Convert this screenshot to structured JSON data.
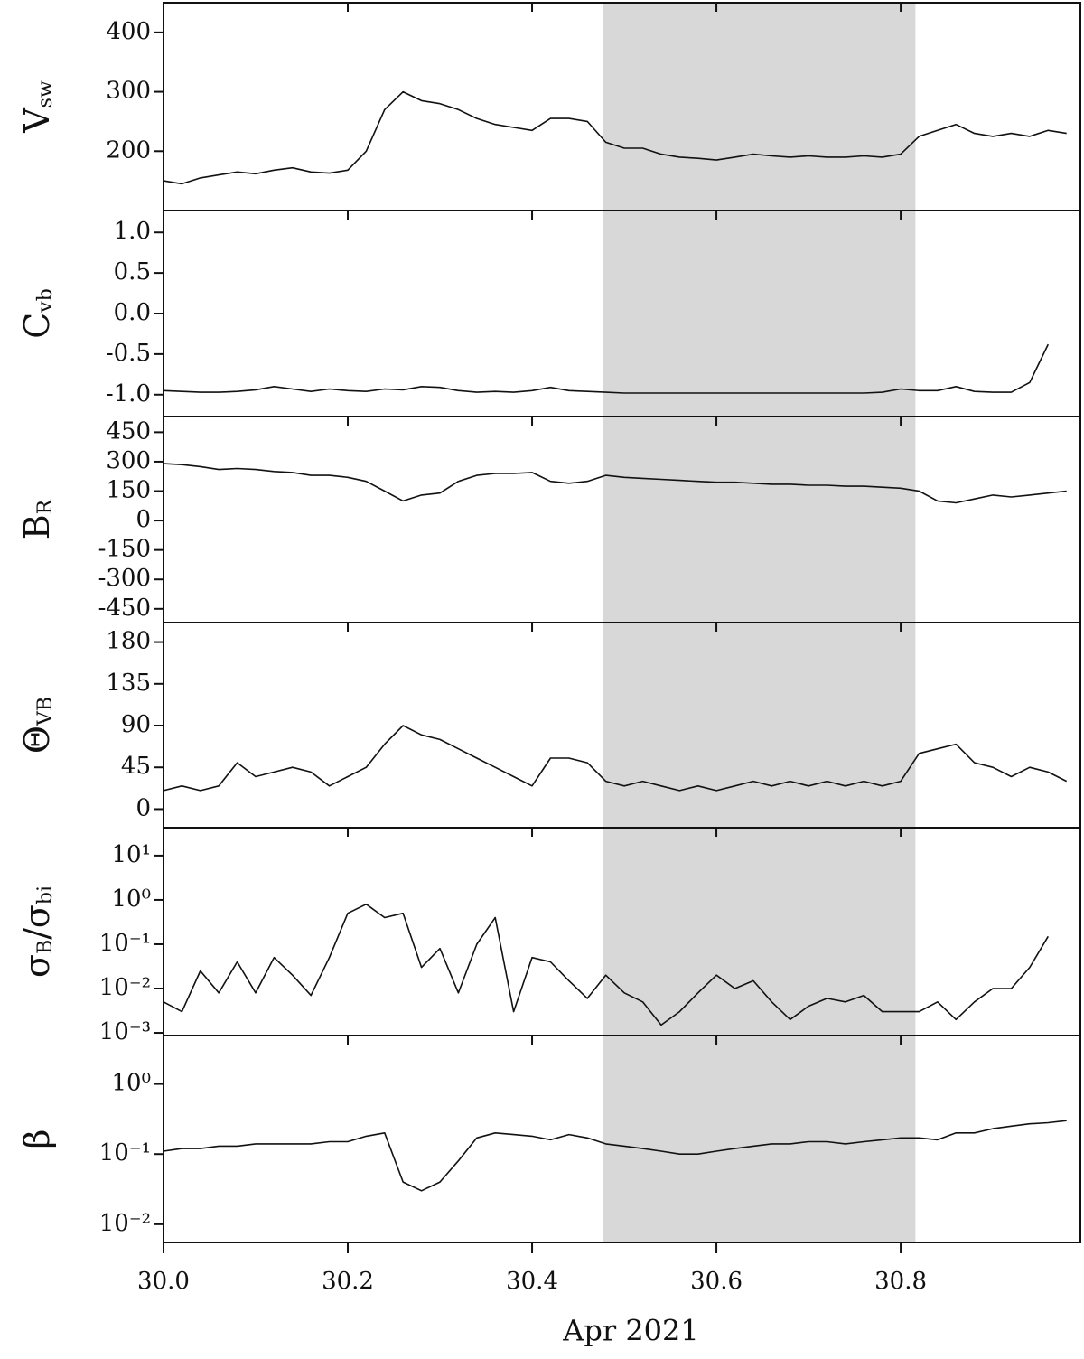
{
  "chart_data": [
    {
      "type": "line",
      "ylabel": [
        "V",
        "sw"
      ],
      "color": "#111111",
      "highlight": [
        30.477,
        30.816
      ],
      "highlight_color": "#d9d8d9",
      "xlim": [
        30,
        30.995
      ],
      "xticks": [
        30,
        30.2,
        30.4,
        30.6,
        30.8
      ],
      "x": [
        30.0,
        30.02,
        30.04,
        30.06,
        30.08,
        30.1,
        30.12,
        30.14,
        30.16,
        30.18,
        30.2,
        30.22,
        30.24,
        30.26,
        30.28,
        30.3,
        30.32,
        30.34,
        30.36,
        30.38,
        30.4,
        30.42,
        30.44,
        30.46,
        30.48,
        30.5,
        30.52,
        30.54,
        30.56,
        30.58,
        30.6,
        30.62,
        30.64,
        30.66,
        30.68,
        30.7,
        30.72,
        30.74,
        30.76,
        30.78,
        30.8,
        30.82,
        30.84,
        30.86,
        30.88,
        30.9,
        30.92,
        30.94,
        30.96,
        30.98
      ],
      "values": [
        150,
        145,
        155,
        160,
        165,
        162,
        168,
        172,
        165,
        163,
        168,
        200,
        270,
        300,
        285,
        280,
        270,
        255,
        245,
        240,
        235,
        255,
        255,
        250,
        215,
        205,
        205,
        195,
        190,
        188,
        185,
        190,
        195,
        192,
        190,
        192,
        190,
        190,
        192,
        190,
        195,
        225,
        235,
        245,
        230,
        225,
        230,
        225,
        235,
        230
      ],
      "ylim": [
        100,
        450
      ],
      "yticks": [
        200,
        300,
        400
      ]
    },
    {
      "type": "line",
      "ylabel": [
        "C",
        "vb"
      ],
      "color": "#111111",
      "highlight": [
        30.477,
        30.816
      ],
      "highlight_color": "#d9d8d9",
      "xlim": [
        30,
        30.995
      ],
      "xticks": [
        30,
        30.2,
        30.4,
        30.6,
        30.8
      ],
      "x": [
        30.0,
        30.02,
        30.04,
        30.06,
        30.08,
        30.1,
        30.12,
        30.14,
        30.16,
        30.18,
        30.2,
        30.22,
        30.24,
        30.26,
        30.28,
        30.3,
        30.32,
        30.34,
        30.36,
        30.38,
        30.4,
        30.42,
        30.44,
        30.46,
        30.48,
        30.5,
        30.52,
        30.54,
        30.56,
        30.58,
        30.6,
        30.62,
        30.64,
        30.66,
        30.68,
        30.7,
        30.72,
        30.74,
        30.76,
        30.78,
        30.8,
        30.82,
        30.84,
        30.86,
        30.88,
        30.9,
        30.92,
        30.94,
        30.96,
        30.98
      ],
      "values": [
        -0.95,
        -0.96,
        -0.97,
        -0.97,
        -0.96,
        -0.94,
        -0.9,
        -0.93,
        -0.96,
        -0.93,
        -0.95,
        -0.96,
        -0.93,
        -0.94,
        -0.9,
        -0.91,
        -0.95,
        -0.97,
        -0.96,
        -0.97,
        -0.95,
        -0.91,
        -0.95,
        -0.96,
        -0.97,
        -0.98,
        -0.98,
        -0.98,
        -0.98,
        -0.98,
        -0.98,
        -0.98,
        -0.98,
        -0.98,
        -0.98,
        -0.98,
        -0.98,
        -0.98,
        -0.98,
        -0.97,
        -0.93,
        -0.95,
        -0.95,
        -0.9,
        -0.96,
        -0.97,
        -0.97,
        -0.85,
        -0.38,
        null
      ],
      "ylim": [
        -1.27,
        1.27
      ],
      "yticks": [
        {
          "value": 1,
          "label": "1.0"
        },
        0.5,
        {
          "value": 0,
          "label": "0.0"
        },
        -0.5,
        {
          "value": -1,
          "label": "-1.0"
        }
      ]
    },
    {
      "type": "line",
      "ylabel": [
        "B",
        "R"
      ],
      "color": "#111111",
      "highlight": [
        30.477,
        30.816
      ],
      "highlight_color": "#d9d8d9",
      "xlim": [
        30,
        30.995
      ],
      "xticks": [
        30,
        30.2,
        30.4,
        30.6,
        30.8
      ],
      "x": [
        30.0,
        30.02,
        30.04,
        30.06,
        30.08,
        30.1,
        30.12,
        30.14,
        30.16,
        30.18,
        30.2,
        30.22,
        30.24,
        30.26,
        30.28,
        30.3,
        30.32,
        30.34,
        30.36,
        30.38,
        30.4,
        30.42,
        30.44,
        30.46,
        30.48,
        30.5,
        30.52,
        30.54,
        30.56,
        30.58,
        30.6,
        30.62,
        30.64,
        30.66,
        30.68,
        30.7,
        30.72,
        30.74,
        30.76,
        30.78,
        30.8,
        30.82,
        30.84,
        30.86,
        30.88,
        30.9,
        30.92,
        30.94,
        30.96,
        30.98
      ],
      "values": [
        290,
        285,
        275,
        260,
        265,
        260,
        250,
        245,
        230,
        230,
        220,
        200,
        150,
        100,
        130,
        140,
        200,
        230,
        240,
        240,
        245,
        200,
        190,
        200,
        230,
        220,
        215,
        210,
        205,
        200,
        195,
        195,
        190,
        185,
        185,
        180,
        180,
        175,
        175,
        170,
        165,
        150,
        100,
        90,
        110,
        130,
        120,
        130,
        140,
        150
      ],
      "ylim": [
        -520,
        530
      ],
      "yticks": [
        450,
        300,
        150,
        0,
        -150,
        -300,
        -450
      ]
    },
    {
      "type": "line",
      "ylabel": [
        "Θ",
        "VB"
      ],
      "color": "#111111",
      "highlight": [
        30.477,
        30.816
      ],
      "highlight_color": "#d9d8d9",
      "xlim": [
        30,
        30.995
      ],
      "xticks": [
        30,
        30.2,
        30.4,
        30.6,
        30.8
      ],
      "x": [
        30.0,
        30.02,
        30.04,
        30.06,
        30.08,
        30.1,
        30.12,
        30.14,
        30.16,
        30.18,
        30.2,
        30.22,
        30.24,
        30.26,
        30.28,
        30.3,
        30.32,
        30.34,
        30.36,
        30.38,
        30.4,
        30.42,
        30.44,
        30.46,
        30.48,
        30.5,
        30.52,
        30.54,
        30.56,
        30.58,
        30.6,
        30.62,
        30.64,
        30.66,
        30.68,
        30.7,
        30.72,
        30.74,
        30.76,
        30.78,
        30.8,
        30.82,
        30.84,
        30.86,
        30.88,
        30.9,
        30.92,
        30.94,
        30.96,
        30.98
      ],
      "values": [
        20,
        25,
        20,
        25,
        50,
        35,
        40,
        45,
        40,
        25,
        35,
        45,
        70,
        90,
        80,
        75,
        65,
        55,
        45,
        35,
        25,
        55,
        55,
        50,
        30,
        25,
        30,
        25,
        20,
        25,
        20,
        25,
        30,
        25,
        30,
        25,
        30,
        25,
        30,
        25,
        30,
        60,
        65,
        70,
        50,
        45,
        35,
        45,
        40,
        30
      ],
      "ylim": [
        -20,
        201
      ],
      "yticks": [
        180,
        135,
        90,
        45,
        0
      ]
    },
    {
      "type": "line",
      "ylabel": [
        "σ",
        "B",
        "/σ",
        "bi"
      ],
      "color": "#111111",
      "log": true,
      "highlight": [
        30.477,
        30.816
      ],
      "highlight_color": "#d9d8d9",
      "xlim": [
        30,
        30.995
      ],
      "xticks": [
        30,
        30.2,
        30.4,
        30.6,
        30.8
      ],
      "x": [
        30.0,
        30.02,
        30.04,
        30.06,
        30.08,
        30.1,
        30.12,
        30.14,
        30.16,
        30.18,
        30.2,
        30.22,
        30.24,
        30.26,
        30.28,
        30.3,
        30.32,
        30.34,
        30.36,
        30.38,
        30.4,
        30.42,
        30.44,
        30.46,
        30.48,
        30.5,
        30.52,
        30.54,
        30.56,
        30.58,
        30.6,
        30.62,
        30.64,
        30.66,
        30.68,
        30.7,
        30.72,
        30.74,
        30.76,
        30.78,
        30.8,
        30.82,
        30.84,
        30.86,
        30.88,
        30.9,
        30.92,
        30.94,
        30.96,
        30.98
      ],
      "values": [
        0.005,
        0.003,
        0.025,
        0.008,
        0.04,
        0.008,
        0.05,
        0.02,
        0.007,
        0.05,
        0.5,
        0.8,
        0.4,
        0.5,
        0.03,
        0.08,
        0.008,
        0.1,
        0.4,
        0.003,
        0.05,
        0.04,
        0.015,
        0.006,
        0.02,
        0.008,
        0.005,
        0.0015,
        0.003,
        0.008,
        0.02,
        0.01,
        0.015,
        0.005,
        0.002,
        0.004,
        0.006,
        0.005,
        0.007,
        0.003,
        0.003,
        0.003,
        0.005,
        0.002,
        0.005,
        0.01,
        0.01,
        0.03,
        0.15,
        null
      ],
      "ylim": [
        0.00087,
        42.7
      ],
      "yticks": [
        {
          "value": 10,
          "label": "10¹"
        },
        {
          "value": 1,
          "label": "10⁰"
        },
        {
          "value": 0.1,
          "label": "10⁻¹"
        },
        {
          "value": 0.01,
          "label": "10⁻²"
        },
        {
          "value": 0.001,
          "label": "10⁻³"
        }
      ]
    },
    {
      "type": "line",
      "ylabel": [
        "β"
      ],
      "color": "#111111",
      "log": true,
      "highlight": [
        30.477,
        30.816
      ],
      "highlight_color": "#d9d8d9",
      "xlabel": "Apr 2021",
      "xlim": [
        30,
        30.995
      ],
      "xticks": [
        {
          "value": 30,
          "label": "30.0"
        },
        30.2,
        30.4,
        30.6,
        30.8
      ],
      "x": [
        30.0,
        30.02,
        30.04,
        30.06,
        30.08,
        30.1,
        30.12,
        30.14,
        30.16,
        30.18,
        30.2,
        30.22,
        30.24,
        30.26,
        30.28,
        30.3,
        30.32,
        30.34,
        30.36,
        30.38,
        30.4,
        30.42,
        30.44,
        30.46,
        30.48,
        30.5,
        30.52,
        30.54,
        30.56,
        30.58,
        30.6,
        30.62,
        30.64,
        30.66,
        30.68,
        30.7,
        30.72,
        30.74,
        30.76,
        30.78,
        30.8,
        30.82,
        30.84,
        30.86,
        30.88,
        30.9,
        30.92,
        30.94,
        30.96,
        30.98
      ],
      "values": [
        0.11,
        0.12,
        0.12,
        0.13,
        0.13,
        0.14,
        0.14,
        0.14,
        0.14,
        0.15,
        0.15,
        0.18,
        0.2,
        0.04,
        0.03,
        0.04,
        0.08,
        0.17,
        0.2,
        0.19,
        0.18,
        0.16,
        0.19,
        0.17,
        0.14,
        0.13,
        0.12,
        0.11,
        0.1,
        0.1,
        0.11,
        0.12,
        0.13,
        0.14,
        0.14,
        0.15,
        0.15,
        0.14,
        0.15,
        0.16,
        0.17,
        0.17,
        0.16,
        0.2,
        0.2,
        0.23,
        0.25,
        0.27,
        0.28,
        0.3
      ],
      "ylim": [
        0.0055,
        4.9
      ],
      "yticks": [
        {
          "value": 1,
          "label": "10⁰"
        },
        {
          "value": 0.1,
          "label": "10⁻¹"
        },
        {
          "value": 0.01,
          "label": "10⁻²"
        }
      ]
    }
  ]
}
